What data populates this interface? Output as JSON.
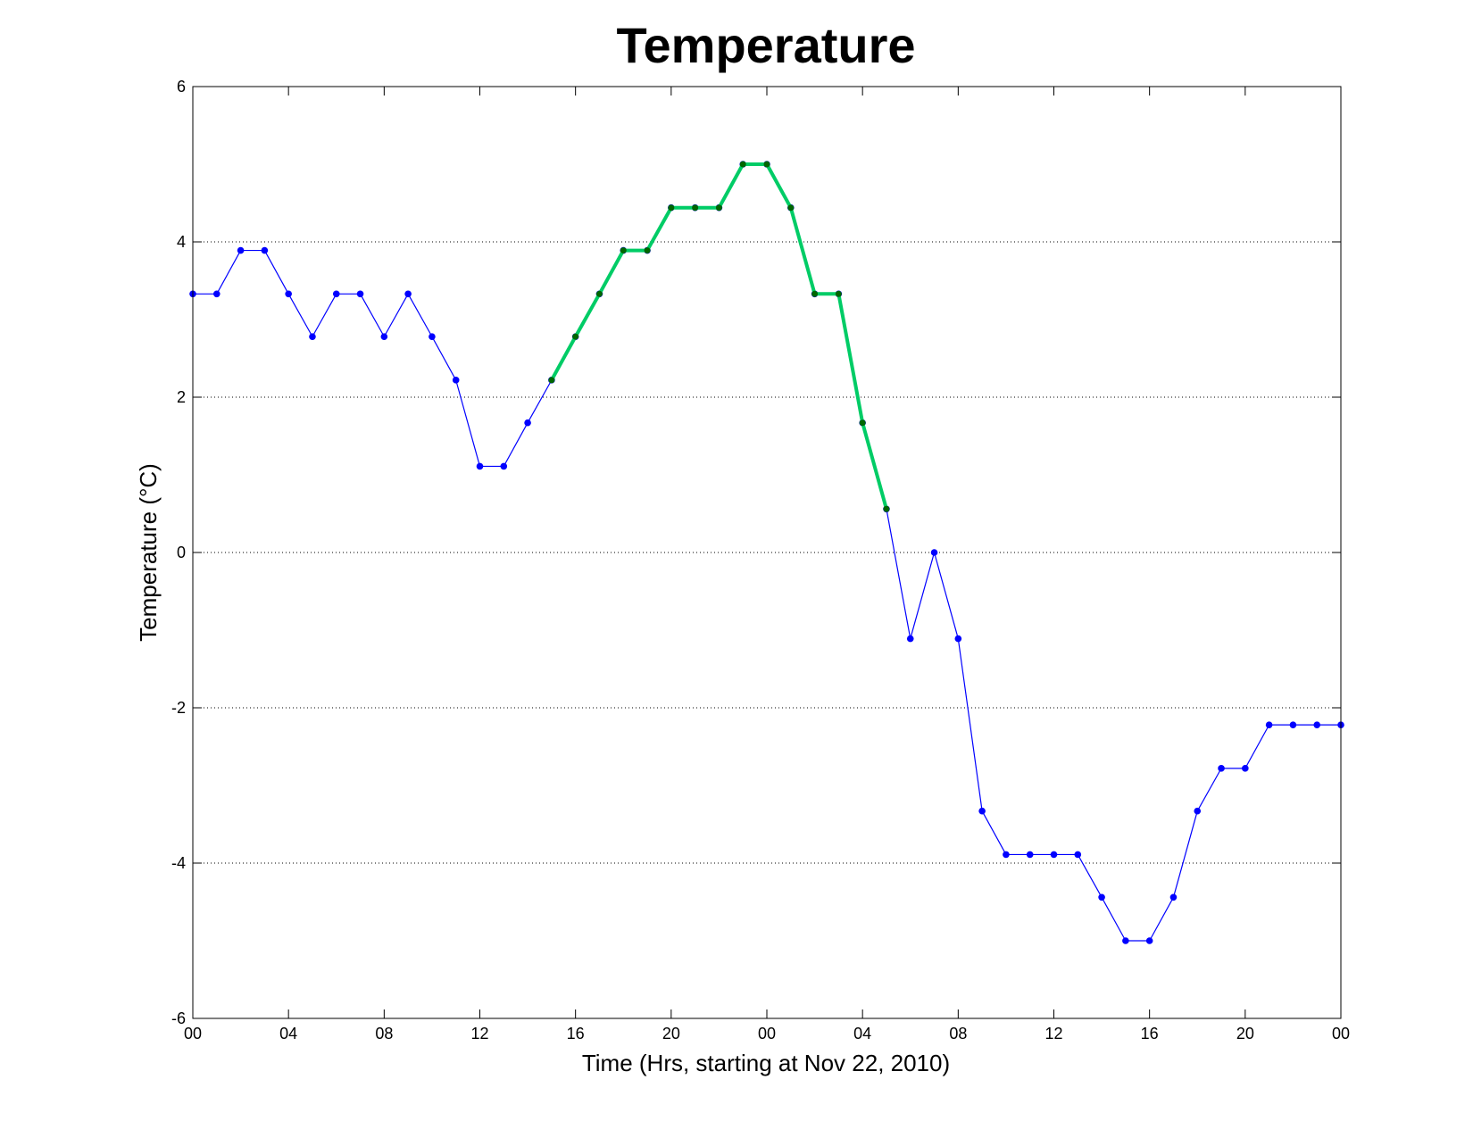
{
  "chart_data": {
    "type": "line",
    "title": "Temperature",
    "xlabel": "Time (Hrs, starting at Nov 22, 2010)",
    "ylabel": "Temperature (°C)",
    "ylim": [
      -6,
      6
    ],
    "xlim": [
      0,
      48
    ],
    "grid": "horizontal-dotted",
    "x_tick_labels": [
      "00",
      "04",
      "08",
      "12",
      "16",
      "20",
      "00",
      "04",
      "08",
      "12",
      "16",
      "20",
      "00"
    ],
    "y_ticks": [
      -6,
      -4,
      -2,
      0,
      2,
      4,
      6
    ],
    "y_tick_labels": [
      "-6",
      "-4",
      "-2",
      "0",
      "2",
      "4",
      "6"
    ],
    "series": [
      {
        "color": "#0000ff",
        "marker_color": "#0000ff",
        "x": [
          0,
          1,
          2,
          3,
          4,
          5,
          6,
          7,
          8,
          9,
          10,
          11,
          12,
          13,
          14,
          15,
          16,
          17,
          18,
          19,
          20,
          21,
          22,
          23,
          24,
          25,
          26,
          27,
          28,
          29,
          30,
          31,
          32,
          33,
          34,
          35,
          36,
          37,
          38,
          39,
          40,
          41,
          42,
          43,
          44,
          45,
          46,
          47,
          48
        ],
        "values": [
          3.33,
          3.33,
          3.89,
          3.89,
          3.33,
          2.78,
          3.33,
          3.33,
          2.78,
          3.33,
          2.78,
          2.22,
          1.11,
          1.11,
          1.67,
          2.22,
          2.78,
          3.33,
          3.89,
          3.89,
          4.44,
          4.44,
          4.44,
          5.0,
          5.0,
          4.44,
          3.33,
          3.33,
          1.67,
          0.56,
          -1.11,
          0.0,
          -1.11,
          -3.33,
          -3.89,
          -3.89,
          -3.89,
          -3.89,
          -4.44,
          -5.0,
          -5.0,
          -4.44,
          -3.33,
          -2.78,
          -2.78,
          -2.22,
          -2.22,
          -2.22,
          -2.22
        ]
      },
      {
        "color": "#00cc66",
        "marker_color": "#006600",
        "x": [
          15,
          16,
          17,
          18,
          19,
          20,
          21,
          22,
          23,
          24,
          25,
          26,
          27,
          28,
          29
        ],
        "values": [
          2.22,
          2.78,
          3.33,
          3.89,
          3.89,
          4.44,
          4.44,
          4.44,
          5.0,
          5.0,
          4.44,
          3.33,
          3.33,
          1.67,
          0.56
        ]
      }
    ]
  }
}
